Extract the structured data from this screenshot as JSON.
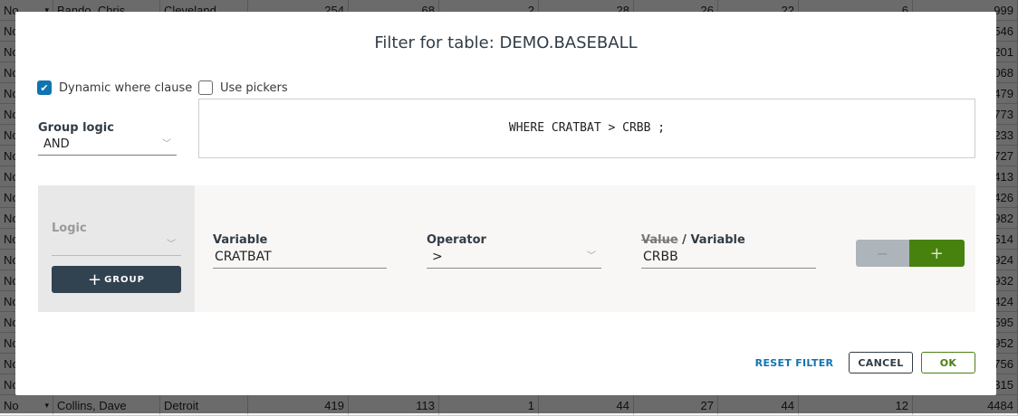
{
  "background_table": {
    "first_row": {
      "flag": "No",
      "name": "Bando, Chris",
      "city": "Cleveland",
      "values": [
        "254",
        "68",
        "2",
        "28",
        "26",
        "22",
        "6",
        "999"
      ]
    },
    "last_row": {
      "flag": "No",
      "name": "Collins, Dave",
      "city": "Detroit",
      "values": [
        "419",
        "113",
        "1",
        "44",
        "27",
        "44",
        "12",
        "4484"
      ]
    },
    "middle_rows": [
      {
        "flag": "No",
        "tail": "546"
      },
      {
        "flag": "No",
        "tail": "201"
      },
      {
        "flag": "No",
        "tail": "068"
      },
      {
        "flag": "No",
        "tail": "479"
      },
      {
        "flag": "No",
        "tail": "773"
      },
      {
        "flag": "No",
        "tail": "233"
      },
      {
        "flag": "No",
        "tail": "727"
      },
      {
        "flag": "No",
        "tail": "413"
      },
      {
        "flag": "No",
        "tail": "426"
      },
      {
        "flag": "No",
        "tail": "982"
      },
      {
        "flag": "No",
        "tail": "514"
      },
      {
        "flag": "No",
        "tail": "924"
      },
      {
        "flag": "No",
        "tail": "932"
      },
      {
        "flag": "No",
        "tail": "424"
      },
      {
        "flag": "No",
        "tail": "595"
      },
      {
        "flag": "No",
        "tail": "952"
      },
      {
        "flag": "No",
        "tail": "756"
      },
      {
        "flag": "No",
        "tail": "315"
      }
    ]
  },
  "dialog": {
    "title": "Filter for table: DEMO.BASEBALL",
    "dynamic_where": {
      "label": "Dynamic where clause",
      "checked": true
    },
    "use_pickers": {
      "label": "Use pickers",
      "checked": false
    },
    "group_logic": {
      "label": "Group logic",
      "value": "AND"
    },
    "where_clause": "WHERE CRATBAT > CRBB ;",
    "condition": {
      "logic_label": "Logic",
      "logic_value": "",
      "group_button": "GROUP",
      "variable_label": "Variable",
      "variable_value": "CRATBAT",
      "operator_label": "Operator",
      "operator_value": ">",
      "value_label_struck": "Value",
      "value_label_rest": " / Variable",
      "value_value": "CRBB",
      "minus": "−",
      "plus": "+"
    },
    "reset": "RESET FILTER",
    "cancel": "CANCEL",
    "ok": "OK"
  },
  "colors": {
    "accent": "#0f74b0",
    "ok_green": "#4a7f12",
    "add_green": "#47820f",
    "dark_button": "#314251"
  }
}
